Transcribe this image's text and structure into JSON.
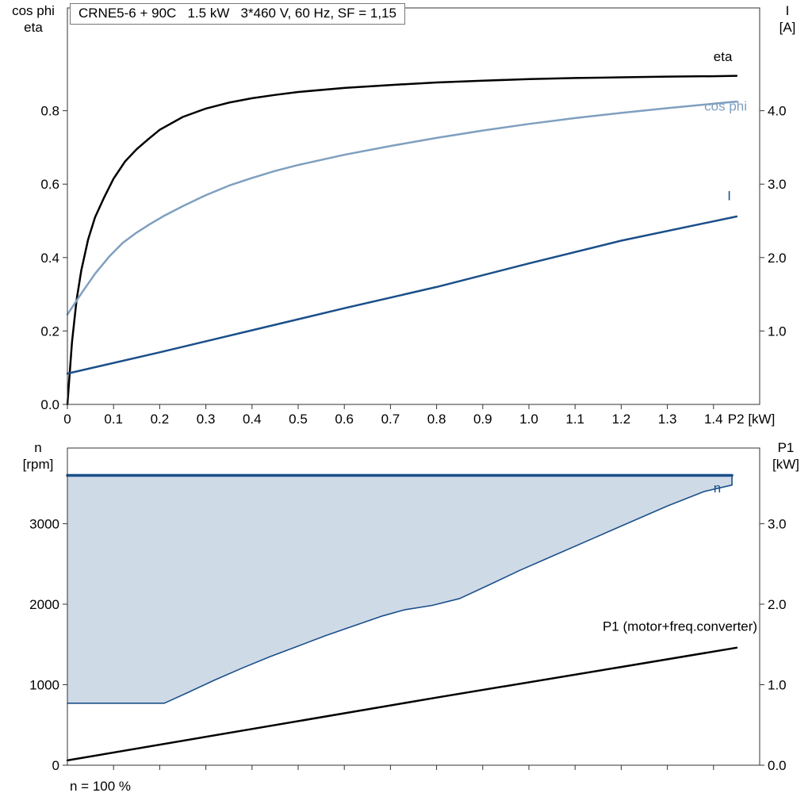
{
  "page": {
    "background": "#ffffff"
  },
  "colors": {
    "black": "#000000",
    "dark_blue": "#1a4f8a",
    "light_blue": "#7f9fbf",
    "fill_blue": "#cfdae7",
    "frame": "#333333"
  },
  "chart_data": [
    {
      "type": "line",
      "title": "CRNE5-6 + 90C   1.5 kW   3*460 V, 60 Hz, SF = 1,15",
      "x_axis": {
        "min": 0,
        "max": 1.5,
        "unit_suffix": "P2 [kW]",
        "ticks": [
          0,
          0.1,
          0.2,
          0.3,
          0.4,
          0.5,
          0.6,
          0.7,
          0.8,
          0.9,
          1.0,
          1.1,
          1.2,
          1.3,
          1.4
        ],
        "tick_labels": [
          "0",
          "0.1",
          "0.2",
          "0.3",
          "0.4",
          "0.5",
          "0.6",
          "0.7",
          "0.8",
          "0.9",
          "1.0",
          "1.1",
          "1.2",
          "1.3",
          "1.4"
        ]
      },
      "left_axis": {
        "title_lines": [
          "cos phi",
          "eta"
        ],
        "min": 0,
        "max": 1.08,
        "ticks": [
          0,
          0.2,
          0.4,
          0.6,
          0.8
        ],
        "tick_labels": [
          "0.0",
          "0.2",
          "0.4",
          "0.6",
          "0.8"
        ]
      },
      "right_axis": {
        "title_lines": [
          "I",
          "[A]"
        ],
        "min": 0,
        "max": 5.4,
        "ticks": [
          1,
          2,
          3,
          4
        ],
        "tick_labels": [
          "1.0",
          "2.0",
          "3.0",
          "4.0"
        ]
      },
      "series": [
        {
          "name": "eta",
          "axis": "left",
          "color": "#000000",
          "width": 2.5,
          "points": [
            [
              0,
              0
            ],
            [
              0.01,
              0.17
            ],
            [
              0.02,
              0.285
            ],
            [
              0.03,
              0.365
            ],
            [
              0.045,
              0.45
            ],
            [
              0.06,
              0.51
            ],
            [
              0.08,
              0.565
            ],
            [
              0.1,
              0.615
            ],
            [
              0.125,
              0.662
            ],
            [
              0.15,
              0.695
            ],
            [
              0.175,
              0.722
            ],
            [
              0.2,
              0.748
            ],
            [
              0.25,
              0.783
            ],
            [
              0.3,
              0.806
            ],
            [
              0.35,
              0.822
            ],
            [
              0.4,
              0.834
            ],
            [
              0.45,
              0.843
            ],
            [
              0.5,
              0.851
            ],
            [
              0.6,
              0.862
            ],
            [
              0.7,
              0.87
            ],
            [
              0.8,
              0.877
            ],
            [
              0.9,
              0.882
            ],
            [
              1.0,
              0.886
            ],
            [
              1.1,
              0.889
            ],
            [
              1.2,
              0.891
            ],
            [
              1.3,
              0.893
            ],
            [
              1.4,
              0.894
            ],
            [
              1.45,
              0.895
            ]
          ]
        },
        {
          "name": "cos-phi",
          "axis": "left",
          "color": "#7f9fbf",
          "width": 2.5,
          "points": [
            [
              0,
              0.245
            ],
            [
              0.03,
              0.302
            ],
            [
              0.06,
              0.356
            ],
            [
              0.09,
              0.402
            ],
            [
              0.12,
              0.44
            ],
            [
              0.15,
              0.468
            ],
            [
              0.18,
              0.492
            ],
            [
              0.21,
              0.514
            ],
            [
              0.25,
              0.54
            ],
            [
              0.3,
              0.57
            ],
            [
              0.35,
              0.596
            ],
            [
              0.4,
              0.617
            ],
            [
              0.45,
              0.636
            ],
            [
              0.5,
              0.652
            ],
            [
              0.6,
              0.68
            ],
            [
              0.7,
              0.704
            ],
            [
              0.8,
              0.726
            ],
            [
              0.9,
              0.746
            ],
            [
              1.0,
              0.764
            ],
            [
              1.1,
              0.78
            ],
            [
              1.2,
              0.794
            ],
            [
              1.3,
              0.807
            ],
            [
              1.4,
              0.819
            ],
            [
              1.45,
              0.825
            ]
          ]
        },
        {
          "name": "current",
          "axis": "right",
          "color": "#1a4f8a",
          "width": 2.5,
          "points": [
            [
              0,
              0.42
            ],
            [
              0.2,
              0.71
            ],
            [
              0.4,
              1.01
            ],
            [
              0.6,
              1.31
            ],
            [
              0.8,
              1.6
            ],
            [
              1.0,
              1.92
            ],
            [
              1.2,
              2.23
            ],
            [
              1.45,
              2.56
            ]
          ]
        }
      ],
      "annotations": [
        {
          "text": "eta",
          "axis": "left",
          "x": 1.4,
          "y": 0.935,
          "anchor": "start",
          "color": "#000000"
        },
        {
          "text": "cos phi",
          "axis": "left",
          "x": 1.38,
          "y": 0.8,
          "anchor": "start",
          "color": "#7f9fbf"
        },
        {
          "text": "I",
          "axis": "right",
          "x": 1.43,
          "y": 2.78,
          "anchor": "start",
          "color": "#1a4f8a"
        }
      ]
    },
    {
      "type": "line",
      "footnote": "n = 100 %",
      "x_axis": {
        "min": 0,
        "max": 1.5,
        "unit_suffix": "",
        "ticks": [
          0.1,
          0.2,
          0.3,
          0.4,
          0.5,
          0.6,
          0.7,
          0.8,
          0.9,
          1.0,
          1.1,
          1.2,
          1.3,
          1.4
        ],
        "tick_labels": [
          "",
          "",
          "",
          "",
          "",
          "",
          "",
          "",
          "",
          "",
          "",
          "",
          "",
          ""
        ]
      },
      "left_axis": {
        "title_lines": [
          "n",
          "[rpm]"
        ],
        "min": 0,
        "max": 3940,
        "ticks": [
          0,
          1000,
          2000,
          3000
        ],
        "tick_labels": [
          "0",
          "1000",
          "2000",
          "3000"
        ]
      },
      "right_axis": {
        "title_lines": [
          "P1",
          "[kW]"
        ],
        "min": 0,
        "max": 3.94,
        "ticks": [
          0,
          1,
          2,
          3
        ],
        "tick_labels": [
          "0.0",
          "1.0",
          "2.0",
          "3.0"
        ]
      },
      "fills": [
        {
          "name": "speed-range",
          "axis": "left",
          "color": "#cfdae7",
          "points": [
            [
              0,
              770
            ],
            [
              0.21,
              770
            ],
            [
              0.26,
              900
            ],
            [
              0.32,
              1060
            ],
            [
              0.38,
              1210
            ],
            [
              0.44,
              1350
            ],
            [
              0.5,
              1480
            ],
            [
              0.56,
              1610
            ],
            [
              0.62,
              1730
            ],
            [
              0.68,
              1850
            ],
            [
              0.73,
              1930
            ],
            [
              0.79,
              1985
            ],
            [
              0.85,
              2070
            ],
            [
              0.91,
              2230
            ],
            [
              0.98,
              2420
            ],
            [
              1.06,
              2620
            ],
            [
              1.14,
              2820
            ],
            [
              1.22,
              3020
            ],
            [
              1.3,
              3220
            ],
            [
              1.38,
              3400
            ],
            [
              1.44,
              3480
            ],
            [
              1.44,
              3600
            ],
            [
              0,
              3600
            ]
          ]
        }
      ],
      "series": [
        {
          "name": "n-max",
          "axis": "left",
          "color": "#1a4f8a",
          "width": 3.5,
          "points": [
            [
              0,
              3600
            ],
            [
              1.44,
              3600
            ]
          ]
        },
        {
          "name": "n-min",
          "axis": "left",
          "color": "#1a4f8a",
          "width": 1.6,
          "points": [
            [
              0,
              770
            ],
            [
              0.21,
              770
            ],
            [
              0.26,
              900
            ],
            [
              0.32,
              1060
            ],
            [
              0.38,
              1210
            ],
            [
              0.44,
              1350
            ],
            [
              0.5,
              1480
            ],
            [
              0.56,
              1610
            ],
            [
              0.62,
              1730
            ],
            [
              0.68,
              1850
            ],
            [
              0.73,
              1930
            ],
            [
              0.79,
              1985
            ],
            [
              0.85,
              2070
            ],
            [
              0.91,
              2230
            ],
            [
              0.98,
              2420
            ],
            [
              1.06,
              2620
            ],
            [
              1.14,
              2820
            ],
            [
              1.22,
              3020
            ],
            [
              1.3,
              3220
            ],
            [
              1.38,
              3400
            ],
            [
              1.44,
              3480
            ],
            [
              1.44,
              3600
            ]
          ]
        },
        {
          "name": "p1",
          "axis": "right",
          "color": "#000000",
          "width": 2.5,
          "points": [
            [
              0,
              0.06
            ],
            [
              0.4,
              0.45
            ],
            [
              0.8,
              0.84
            ],
            [
              1.2,
              1.22
            ],
            [
              1.45,
              1.46
            ]
          ]
        }
      ],
      "annotations": [
        {
          "text": "n",
          "axis": "left",
          "x": 1.4,
          "y": 3390,
          "anchor": "start",
          "color": "#1a4f8a"
        },
        {
          "text": "P1 (motor+freq.converter)",
          "axis": "right",
          "x": 1.495,
          "y": 1.67,
          "anchor": "end",
          "color": "#000000"
        }
      ]
    }
  ]
}
